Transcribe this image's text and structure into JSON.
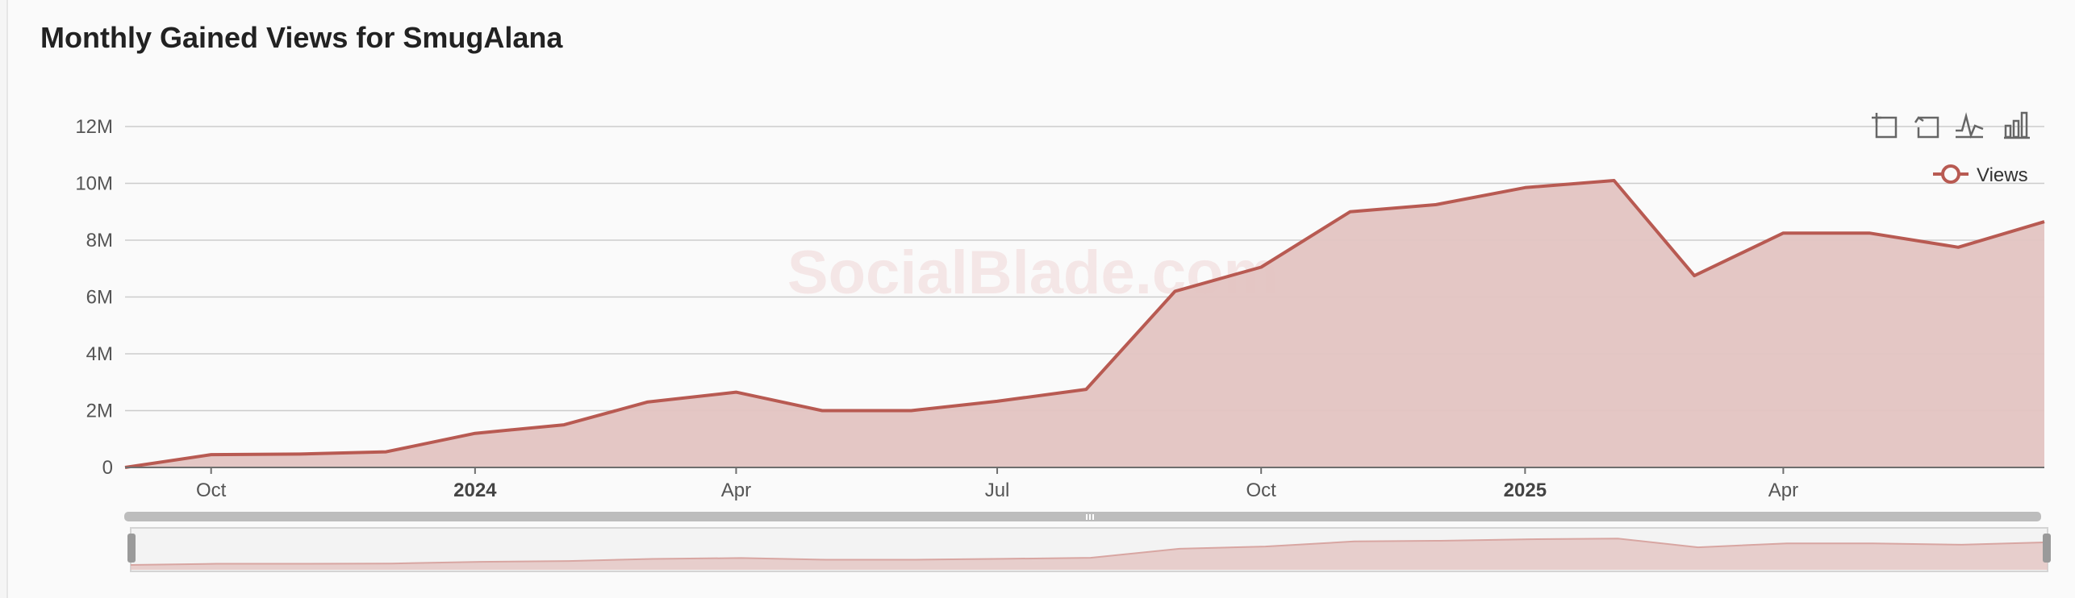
{
  "title": "Monthly Gained Views for SmugAlana",
  "watermark": "SocialBlade.com",
  "colors": {
    "line": "#b85a52",
    "area": "#e3c4c2",
    "grid": "#cccccc",
    "axis": "#6e6e6e"
  },
  "toolbar": {
    "icons": [
      "zoom-icon",
      "zoom-reset-icon",
      "line-chart-icon",
      "bar-chart-icon"
    ]
  },
  "chart_data": {
    "type": "area",
    "title": "Monthly Gained Views for SmugAlana",
    "x": [
      "2023-09-01",
      "2023-10-01",
      "2023-11-01",
      "2023-12-01",
      "2024-01-01",
      "2024-02-01",
      "2024-03-01",
      "2024-04-01",
      "2024-05-01",
      "2024-06-01",
      "2024-07-01",
      "2024-08-01",
      "2024-09-01",
      "2024-10-01",
      "2024-11-01",
      "2024-12-01",
      "2025-01-01",
      "2025-02-01",
      "2025-03-01",
      "2025-04-01",
      "2025-05-01",
      "2025-06-01",
      "2025-07-01"
    ],
    "series": [
      {
        "name": "Views",
        "values": [
          0,
          450000,
          470000,
          550000,
          1200000,
          1500000,
          2300000,
          2650000,
          2000000,
          2000000,
          2330000,
          2750000,
          6200000,
          7050000,
          9000000,
          9250000,
          9850000,
          10100000,
          6750000,
          8250000,
          8250000,
          7750000,
          8650000
        ]
      }
    ],
    "y_ticks": [
      "0",
      "2M",
      "4M",
      "6M",
      "8M",
      "10M",
      "12M"
    ],
    "y_tick_values": [
      0,
      2000000,
      4000000,
      6000000,
      8000000,
      10000000,
      12000000
    ],
    "x_ticks": [
      {
        "label": "Oct",
        "x": "2023-10-01",
        "bold": false
      },
      {
        "label": "2024",
        "x": "2024-01-01",
        "bold": true
      },
      {
        "label": "Apr",
        "x": "2024-04-01",
        "bold": false
      },
      {
        "label": "Jul",
        "x": "2024-07-01",
        "bold": false
      },
      {
        "label": "Oct",
        "x": "2024-10-01",
        "bold": false
      },
      {
        "label": "2025",
        "x": "2025-01-01",
        "bold": true
      },
      {
        "label": "Apr",
        "x": "2025-04-01",
        "bold": false
      }
    ],
    "ylim": [
      0,
      12000000
    ],
    "grid": true,
    "legend": {
      "position": "top-right",
      "entries": [
        "Views"
      ]
    },
    "data_zoom": true
  }
}
